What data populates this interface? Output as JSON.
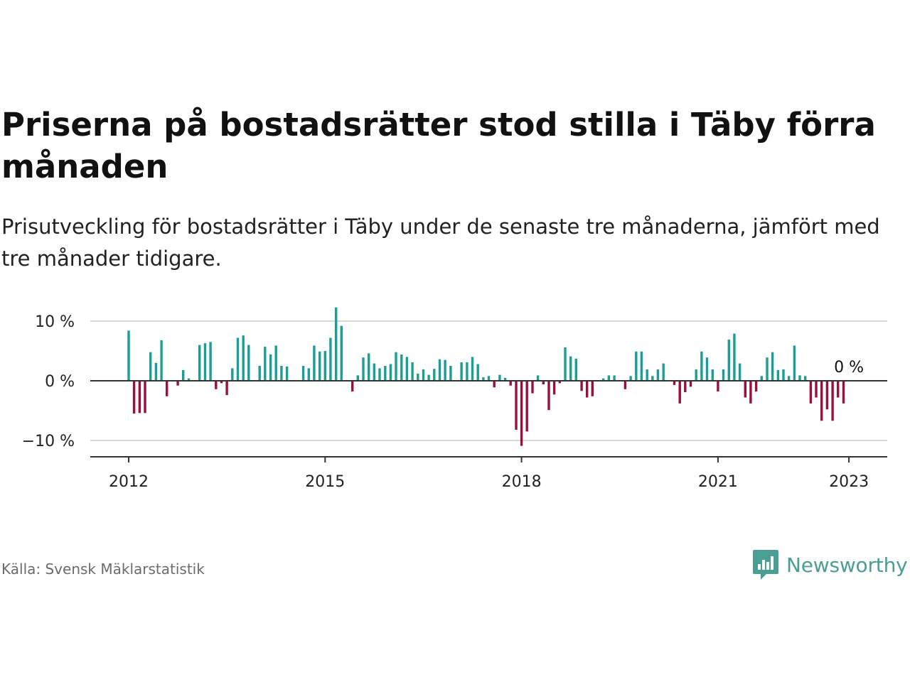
{
  "header": {
    "title": "Priserna på bostadsrätter stod stilla i Täby förra månaden",
    "subtitle": "Prisutveckling för bostadsrätter i Täby under de senaste tre månaderna, jämfört med tre månader tidigare."
  },
  "footer": {
    "source": "Källa: Svensk Mäklarstatistik",
    "brand": "Newsworthy"
  },
  "colors": {
    "positive": "#1a9e96",
    "negative": "#99103f",
    "grid": "#d9d9d9",
    "axis": "#333333",
    "brand": "#4a9e93"
  },
  "icons": {
    "brand_logo": "newsworthy-logo-icon"
  },
  "chart_data": {
    "type": "bar",
    "title": "Priserna på bostadsrätter stod stilla i Täby förra månaden",
    "subtitle": "Prisutveckling för bostadsrätter i Täby under de senaste tre månaderna, jämfört med tre månader tidigare.",
    "xlabel": "",
    "ylabel": "",
    "ylim": [
      -13,
      13
    ],
    "grid": true,
    "legend": "none",
    "y_ticks": [
      {
        "value": 10,
        "label": "10 %"
      },
      {
        "value": 0,
        "label": "0 %"
      },
      {
        "value": -10,
        "label": "−10 %"
      }
    ],
    "x_ticks": [
      {
        "value": 2012,
        "label": "2012"
      },
      {
        "value": 2015,
        "label": "2015"
      },
      {
        "value": 2018,
        "label": "2018"
      },
      {
        "value": 2021,
        "label": "2021"
      },
      {
        "value": 2023,
        "label": "2023"
      }
    ],
    "x_range": [
      2011.4,
      2023.6
    ],
    "series": [
      {
        "values": [
          [
            2012.0,
            8.4
          ],
          [
            2012.083,
            -5.5
          ],
          [
            2012.167,
            -5.4
          ],
          [
            2012.25,
            -5.4
          ],
          [
            2012.333,
            4.8
          ],
          [
            2012.417,
            3.0
          ],
          [
            2012.5,
            6.8
          ],
          [
            2012.583,
            -2.6
          ],
          [
            2012.75,
            -0.8
          ],
          [
            2012.833,
            1.8
          ],
          [
            2012.917,
            0.4
          ],
          [
            2013.083,
            6.0
          ],
          [
            2013.167,
            6.3
          ],
          [
            2013.25,
            6.5
          ],
          [
            2013.333,
            -1.4
          ],
          [
            2013.417,
            -0.4
          ],
          [
            2013.5,
            -2.4
          ],
          [
            2013.583,
            2.1
          ],
          [
            2013.667,
            7.2
          ],
          [
            2013.75,
            7.6
          ],
          [
            2013.833,
            6.0
          ],
          [
            2014.0,
            2.5
          ],
          [
            2014.083,
            5.7
          ],
          [
            2014.167,
            4.4
          ],
          [
            2014.25,
            5.9
          ],
          [
            2014.333,
            2.5
          ],
          [
            2014.417,
            2.4
          ],
          [
            2014.667,
            2.5
          ],
          [
            2014.75,
            2.1
          ],
          [
            2014.833,
            5.9
          ],
          [
            2014.917,
            4.9
          ],
          [
            2015.0,
            5.0
          ],
          [
            2015.083,
            7.2
          ],
          [
            2015.167,
            12.3
          ],
          [
            2015.25,
            9.2
          ],
          [
            2015.417,
            -1.8
          ],
          [
            2015.5,
            0.9
          ],
          [
            2015.583,
            3.9
          ],
          [
            2015.667,
            4.6
          ],
          [
            2015.75,
            2.9
          ],
          [
            2015.833,
            2.1
          ],
          [
            2015.917,
            2.5
          ],
          [
            2016.0,
            2.8
          ],
          [
            2016.083,
            4.8
          ],
          [
            2016.167,
            4.4
          ],
          [
            2016.25,
            4.0
          ],
          [
            2016.333,
            3.1
          ],
          [
            2016.417,
            1.2
          ],
          [
            2016.5,
            1.9
          ],
          [
            2016.583,
            1.0
          ],
          [
            2016.667,
            2.0
          ],
          [
            2016.75,
            3.6
          ],
          [
            2016.833,
            3.5
          ],
          [
            2016.917,
            2.5
          ],
          [
            2017.083,
            3.1
          ],
          [
            2017.167,
            3.1
          ],
          [
            2017.25,
            4.0
          ],
          [
            2017.333,
            2.8
          ],
          [
            2017.417,
            0.6
          ],
          [
            2017.5,
            0.8
          ],
          [
            2017.583,
            -1.1
          ],
          [
            2017.667,
            1.0
          ],
          [
            2017.75,
            0.5
          ],
          [
            2017.833,
            -0.8
          ],
          [
            2017.917,
            -8.2
          ],
          [
            2018.0,
            -10.9
          ],
          [
            2018.083,
            -8.5
          ],
          [
            2018.167,
            -2.1
          ],
          [
            2018.25,
            0.9
          ],
          [
            2018.333,
            -0.6
          ],
          [
            2018.417,
            -4.9
          ],
          [
            2018.5,
            -2.3
          ],
          [
            2018.583,
            -0.4
          ],
          [
            2018.667,
            5.6
          ],
          [
            2018.75,
            4.1
          ],
          [
            2018.833,
            3.7
          ],
          [
            2018.917,
            -1.7
          ],
          [
            2019.0,
            -2.8
          ],
          [
            2019.083,
            -2.6
          ],
          [
            2019.25,
            0.4
          ],
          [
            2019.333,
            0.9
          ],
          [
            2019.417,
            0.9
          ],
          [
            2019.583,
            -1.4
          ],
          [
            2019.667,
            0.8
          ],
          [
            2019.75,
            4.9
          ],
          [
            2019.833,
            4.9
          ],
          [
            2019.917,
            1.9
          ],
          [
            2020.0,
            0.8
          ],
          [
            2020.083,
            1.9
          ],
          [
            2020.167,
            2.9
          ],
          [
            2020.333,
            -0.7
          ],
          [
            2020.417,
            -3.8
          ],
          [
            2020.5,
            -1.9
          ],
          [
            2020.583,
            -1.0
          ],
          [
            2020.667,
            1.9
          ],
          [
            2020.75,
            4.9
          ],
          [
            2020.833,
            3.9
          ],
          [
            2020.917,
            1.9
          ],
          [
            2021.0,
            -1.8
          ],
          [
            2021.083,
            1.9
          ],
          [
            2021.167,
            6.9
          ],
          [
            2021.25,
            7.9
          ],
          [
            2021.333,
            2.9
          ],
          [
            2021.417,
            -2.8
          ],
          [
            2021.5,
            -3.8
          ],
          [
            2021.583,
            -1.8
          ],
          [
            2021.667,
            0.8
          ],
          [
            2021.75,
            3.9
          ],
          [
            2021.833,
            4.8
          ],
          [
            2021.917,
            1.8
          ],
          [
            2022.0,
            1.9
          ],
          [
            2022.083,
            0.8
          ],
          [
            2022.167,
            5.9
          ],
          [
            2022.25,
            0.9
          ],
          [
            2022.333,
            0.8
          ],
          [
            2022.417,
            -3.8
          ],
          [
            2022.5,
            -2.8
          ],
          [
            2022.583,
            -6.7
          ],
          [
            2022.667,
            -4.8
          ],
          [
            2022.75,
            -6.7
          ],
          [
            2022.833,
            -2.8
          ],
          [
            2022.917,
            -3.8
          ],
          [
            2023.0,
            0.0
          ]
        ]
      }
    ],
    "annotations": [
      {
        "x": 2023.0,
        "y": 0,
        "text": "0 %"
      }
    ]
  }
}
